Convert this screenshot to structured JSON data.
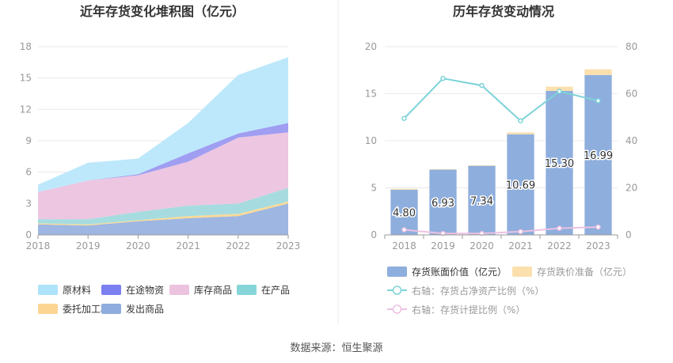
{
  "source_note": "数据来源：恒生聚源",
  "chart_data": [
    {
      "type": "area",
      "stacked": true,
      "title": "近年存货变化堆积图（亿元）",
      "categories": [
        "2018",
        "2019",
        "2020",
        "2021",
        "2022",
        "2023"
      ],
      "y_ticks": [
        "0",
        "3",
        "6",
        "9",
        "12",
        "15",
        "18"
      ],
      "ylim": [
        0,
        18
      ],
      "grid": true,
      "legend_position": "bottom",
      "series": [
        {
          "name": "发出商品",
          "color": "#9db6e2",
          "values": [
            1.0,
            0.9,
            1.3,
            1.6,
            1.8,
            3.0
          ]
        },
        {
          "name": "委托加工材料",
          "color": "#fbd995",
          "values": [
            0.1,
            0.1,
            0.1,
            0.2,
            0.2,
            0.2
          ]
        },
        {
          "name": "在产品",
          "color": "#a6dcdf",
          "values": [
            0.4,
            0.5,
            0.8,
            1.0,
            1.0,
            1.3
          ]
        },
        {
          "name": "库存商品",
          "color": "#edc6e1",
          "values": [
            2.6,
            3.7,
            3.5,
            4.2,
            6.3,
            5.3
          ]
        },
        {
          "name": "在途物资",
          "color": "#9f9ef1",
          "values": [
            0.0,
            0.0,
            0.1,
            0.8,
            0.4,
            0.9
          ]
        },
        {
          "name": "原材料",
          "color": "#bde8fb",
          "values": [
            0.7,
            1.7,
            1.5,
            2.9,
            5.6,
            6.3
          ]
        }
      ],
      "legend": [
        {
          "name": "原材料",
          "color": "#aee3fa"
        },
        {
          "name": "在途物资",
          "color": "#7b7ff0"
        },
        {
          "name": "库存商品",
          "color": "#ebc3df"
        },
        {
          "name": "在产品",
          "color": "#86d6d9"
        },
        {
          "name": "委托加工材料",
          "color": "#fcd592"
        },
        {
          "name": "发出商品",
          "color": "#8fadde"
        }
      ]
    },
    {
      "type": "bar",
      "title": "历年存货变动情况",
      "categories": [
        "2018",
        "2019",
        "2020",
        "2021",
        "2022",
        "2023"
      ],
      "y_left_ticks": [
        "0",
        "5",
        "10",
        "15",
        "20"
      ],
      "y_right_ticks": [
        "0",
        "20",
        "40",
        "60",
        "80"
      ],
      "ylim_left": [
        0,
        20
      ],
      "ylim_right": [
        0,
        80
      ],
      "grid": true,
      "legend_position": "bottom",
      "series": [
        {
          "name": "存货账面价值（亿元）",
          "kind": "bar",
          "axis": "left",
          "color": "#8eaedd",
          "values": [
            4.8,
            6.93,
            7.34,
            10.69,
            15.3,
            16.99
          ],
          "labels": [
            "4.80",
            "6.93",
            "7.34",
            "10.69",
            "15.30",
            "16.99"
          ]
        },
        {
          "name": "存货跌价准备（亿元）",
          "kind": "bar-stacked",
          "axis": "left",
          "color": "#fbe0ae",
          "values": [
            0.1,
            0.05,
            0.05,
            0.2,
            0.45,
            0.6
          ]
        },
        {
          "name": "右轴：存货占净资产比例（%）",
          "kind": "line",
          "axis": "right",
          "color": "#7dd3d8",
          "values": [
            49.5,
            66.5,
            63.5,
            48.5,
            61.0,
            57.0
          ]
        },
        {
          "name": "右轴：存货计提比例（%）",
          "kind": "line",
          "axis": "right",
          "color": "#ecc1e2",
          "values": [
            2.2,
            0.6,
            0.6,
            1.4,
            2.8,
            3.3
          ]
        }
      ]
    }
  ]
}
